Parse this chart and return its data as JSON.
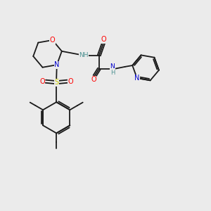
{
  "bg_color": "#ebebeb",
  "bond_color": "#1a1a1a",
  "bond_width": 1.3,
  "atom_colors": {
    "O": "#ff0000",
    "N": "#0000cd",
    "S": "#cccc00",
    "H": "#4a9090",
    "C": "#1a1a1a"
  },
  "font_size": 7.0,
  "fig_width": 3.0,
  "fig_height": 3.0,
  "dpi": 100
}
